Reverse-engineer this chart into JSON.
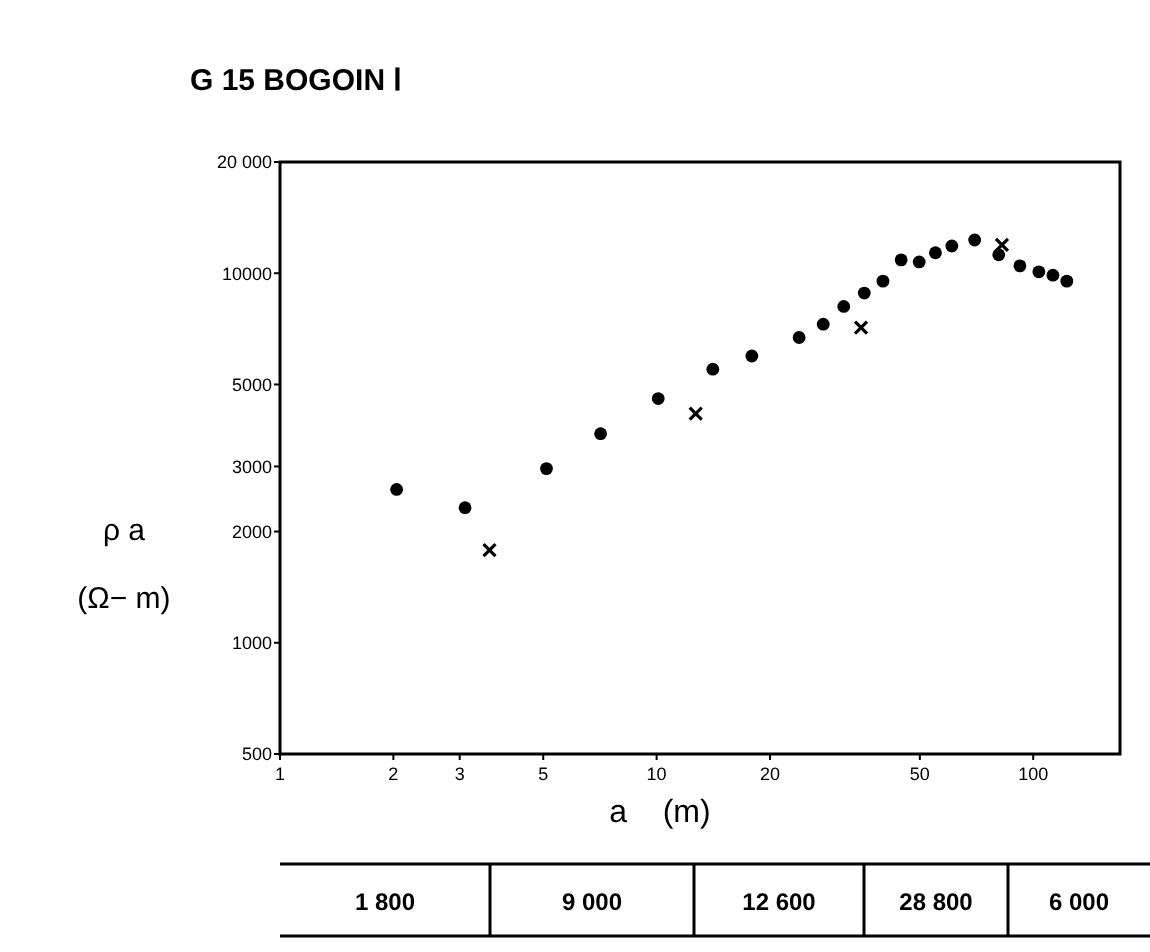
{
  "chart_data": {
    "type": "scatter",
    "title": "G 15   BOGOIN Ⅰ",
    "xlabel": "a    (m)",
    "ylabel": "ρ a\n(Ω− m)",
    "log": "xy",
    "grid": false,
    "xlim": [
      1,
      170
    ],
    "xticks": [
      1,
      2,
      3,
      5,
      10,
      20,
      50,
      100
    ],
    "ylim": [
      500,
      20000
    ],
    "yticks": [
      500,
      1000,
      2000,
      3000,
      5000,
      10000,
      {
        "value": 20000,
        "label": "20 000"
      }
    ],
    "series": [
      {
        "color": "#000000",
        "marker": "circle",
        "x": [
          2.04,
          3.1,
          5.1,
          7.1,
          10.1,
          14.1,
          17.9,
          23.9,
          27.7,
          31.4,
          35.6,
          39.9,
          44.6,
          49.8,
          55,
          60.8,
          69.9,
          81,
          92.2,
          103.5,
          112.8,
          122.8
        ],
        "values": [
          2600,
          2320,
          2960,
          3680,
          4580,
          5500,
          5970,
          6700,
          7280,
          8130,
          8840,
          9520,
          10870,
          10730,
          11360,
          11850,
          12300,
          11220,
          10470,
          10090,
          9880,
          9520
        ]
      },
      {
        "color": "#000000",
        "marker": "cross",
        "x": [
          3.6,
          12.7,
          34.9,
          82.6
        ],
        "values": [
          1780,
          4170,
          7130,
          11940
        ]
      }
    ],
    "annotations": [
      "1 800",
      "9 000",
      "12 600",
      "28 800",
      "6 000"
    ]
  }
}
